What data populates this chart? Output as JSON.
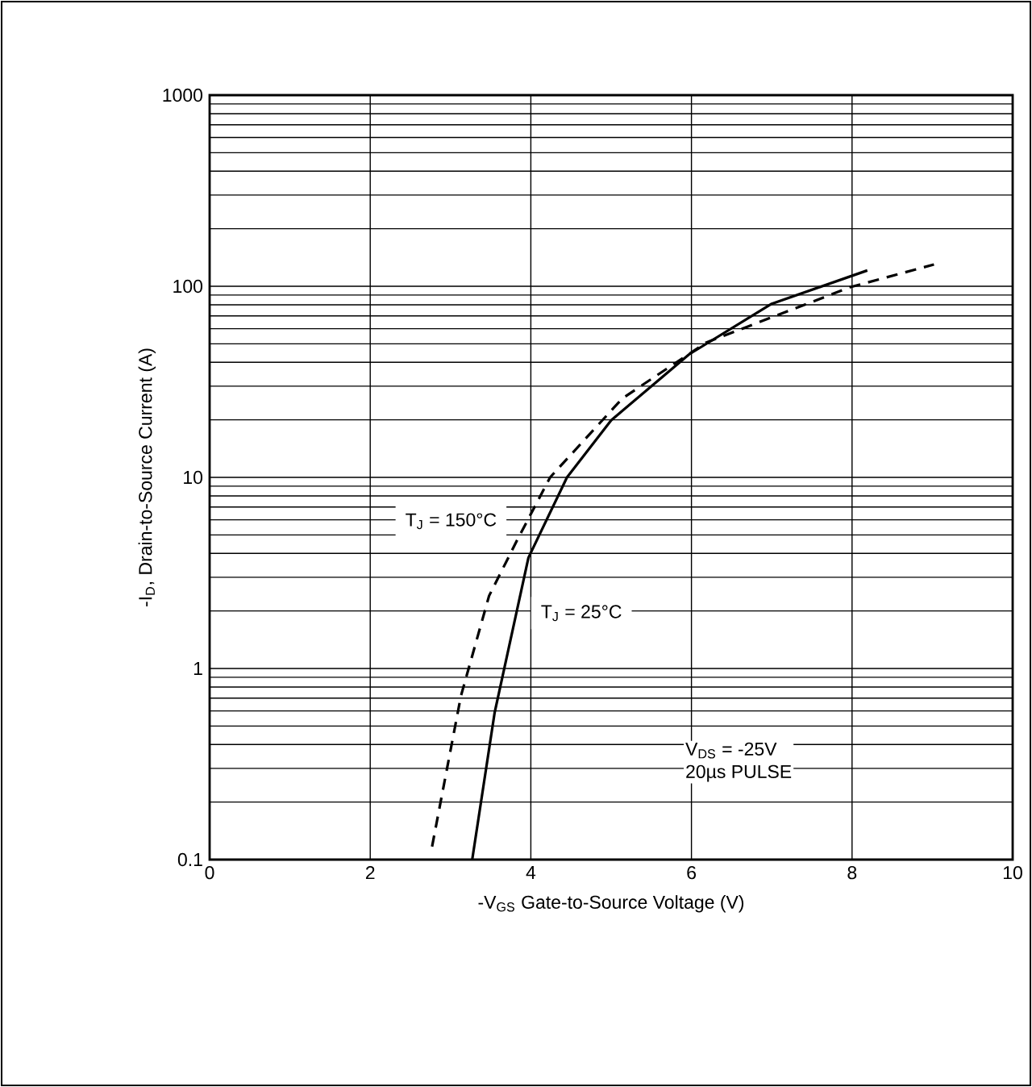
{
  "chart_data": {
    "type": "line",
    "xlabel": "-V$_{GS}$ Gate-to-Source Voltage (V)",
    "ylabel": "-I$_{D}$, Drain-to-Source Current (A)",
    "xlim": [
      0,
      10
    ],
    "xticks": [
      0,
      2,
      4,
      6,
      8,
      10
    ],
    "ylim": [
      0.1,
      1000
    ],
    "yticks": [
      0.1,
      1,
      10,
      100,
      1000
    ],
    "log": "y",
    "grid": true,
    "legend": false,
    "marker": "none",
    "series": [
      {
        "name": "T$_{J}$ = 25°C",
        "color": "#000000",
        "line_style": "solid",
        "x": [
          3.27,
          3.55,
          3.97,
          4.45,
          5.0,
          5.97,
          7.0,
          8.19
        ],
        "values": [
          0.1,
          0.59,
          3.8,
          10,
          19.9,
          44,
          81,
          121
        ]
      },
      {
        "name": "T$_{J}$ = 150°C",
        "color": "#000000",
        "line_style": "dashed",
        "x": [
          2.77,
          3.13,
          3.48,
          3.83,
          4.24,
          5.14,
          6.18,
          7.98,
          9.02
        ],
        "values": [
          0.117,
          0.72,
          2.4,
          4.7,
          10,
          25.9,
          50.7,
          99,
          130
        ]
      }
    ],
    "annotations": [
      "V$_{DS}$ = -25V",
      "20µs PULSE"
    ]
  }
}
